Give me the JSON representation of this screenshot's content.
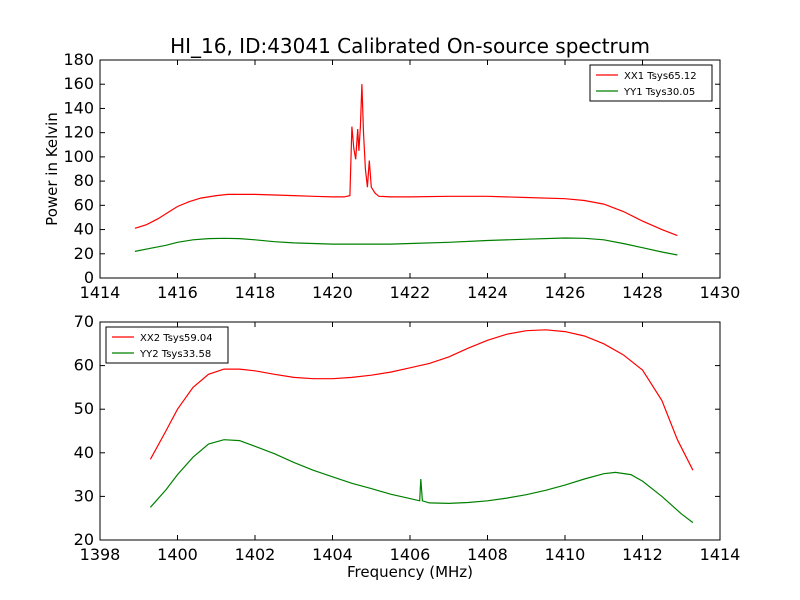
{
  "chart_data": [
    {
      "type": "line",
      "title": "HI_16, ID:43041 Calibrated On-source spectrum",
      "xlabel": "",
      "ylabel": "Power in Kelvin",
      "xlim": [
        1414,
        1430
      ],
      "ylim": [
        0,
        180
      ],
      "xticks": [
        1414,
        1416,
        1418,
        1420,
        1422,
        1424,
        1426,
        1428,
        1430
      ],
      "yticks": [
        0,
        20,
        40,
        60,
        80,
        100,
        120,
        140,
        160,
        180
      ],
      "grid": false,
      "legend_position": "top-right",
      "series": [
        {
          "name": "XX1 Tsys65.12",
          "color": "#ff0000",
          "points": [
            [
              1414.9,
              41
            ],
            [
              1415.2,
              44
            ],
            [
              1415.5,
              49
            ],
            [
              1415.8,
              55
            ],
            [
              1416.0,
              59
            ],
            [
              1416.3,
              63
            ],
            [
              1416.6,
              66
            ],
            [
              1417.0,
              68
            ],
            [
              1417.3,
              69
            ],
            [
              1417.6,
              69
            ],
            [
              1418.0,
              69
            ],
            [
              1418.5,
              68.5
            ],
            [
              1419.0,
              68
            ],
            [
              1419.5,
              67.5
            ],
            [
              1420.0,
              67
            ],
            [
              1420.3,
              67
            ],
            [
              1420.45,
              68
            ],
            [
              1420.5,
              125
            ],
            [
              1420.55,
              107
            ],
            [
              1420.6,
              98
            ],
            [
              1420.65,
              123
            ],
            [
              1420.68,
              105
            ],
            [
              1420.72,
              125
            ],
            [
              1420.76,
              160
            ],
            [
              1420.8,
              120
            ],
            [
              1420.85,
              90
            ],
            [
              1420.9,
              75
            ],
            [
              1420.95,
              97
            ],
            [
              1421.0,
              75
            ],
            [
              1421.1,
              70
            ],
            [
              1421.2,
              67.5
            ],
            [
              1421.5,
              67
            ],
            [
              1422.0,
              67
            ],
            [
              1423.0,
              67.5
            ],
            [
              1424.0,
              67.5
            ],
            [
              1425.0,
              66.5
            ],
            [
              1426.0,
              65.5
            ],
            [
              1426.5,
              64
            ],
            [
              1427.0,
              61
            ],
            [
              1427.5,
              55
            ],
            [
              1428.0,
              47
            ],
            [
              1428.5,
              40
            ],
            [
              1428.9,
              35
            ]
          ]
        },
        {
          "name": "YY1 Tsys30.05",
          "color": "#008000",
          "points": [
            [
              1414.9,
              22
            ],
            [
              1415.3,
              24.5
            ],
            [
              1415.7,
              27
            ],
            [
              1416.0,
              29.5
            ],
            [
              1416.4,
              31.5
            ],
            [
              1416.8,
              32.5
            ],
            [
              1417.2,
              32.8
            ],
            [
              1417.6,
              32.5
            ],
            [
              1418.0,
              31.5
            ],
            [
              1418.5,
              30
            ],
            [
              1419.0,
              29
            ],
            [
              1419.5,
              28.5
            ],
            [
              1420.0,
              28
            ],
            [
              1420.5,
              28
            ],
            [
              1421.0,
              28
            ],
            [
              1421.5,
              28
            ],
            [
              1422.0,
              28.5
            ],
            [
              1423.0,
              29.5
            ],
            [
              1424.0,
              31
            ],
            [
              1425.0,
              32
            ],
            [
              1426.0,
              33
            ],
            [
              1426.5,
              32.8
            ],
            [
              1427.0,
              31.5
            ],
            [
              1427.5,
              28.5
            ],
            [
              1428.0,
              25
            ],
            [
              1428.5,
              21.5
            ],
            [
              1428.9,
              19
            ]
          ]
        }
      ]
    },
    {
      "type": "line",
      "title": "",
      "xlabel": "Frequency (MHz)",
      "ylabel": "",
      "xlim": [
        1398,
        1414
      ],
      "ylim": [
        20,
        70
      ],
      "xticks": [
        1398,
        1400,
        1402,
        1404,
        1406,
        1408,
        1410,
        1412,
        1414
      ],
      "yticks": [
        20,
        30,
        40,
        50,
        60,
        70
      ],
      "grid": false,
      "legend_position": "top-left",
      "series": [
        {
          "name": "XX2 Tsys59.04",
          "color": "#ff0000",
          "points": [
            [
              1399.3,
              38.5
            ],
            [
              1399.7,
              45
            ],
            [
              1400.0,
              50
            ],
            [
              1400.4,
              55
            ],
            [
              1400.8,
              58
            ],
            [
              1401.2,
              59.2
            ],
            [
              1401.6,
              59.2
            ],
            [
              1402.0,
              58.8
            ],
            [
              1402.5,
              58
            ],
            [
              1403.0,
              57.3
            ],
            [
              1403.5,
              57
            ],
            [
              1404.0,
              57
            ],
            [
              1404.5,
              57.3
            ],
            [
              1405.0,
              57.8
            ],
            [
              1405.5,
              58.5
            ],
            [
              1406.0,
              59.5
            ],
            [
              1406.5,
              60.5
            ],
            [
              1407.0,
              62
            ],
            [
              1407.5,
              64
            ],
            [
              1408.0,
              65.8
            ],
            [
              1408.5,
              67.2
            ],
            [
              1409.0,
              68
            ],
            [
              1409.5,
              68.2
            ],
            [
              1410.0,
              67.8
            ],
            [
              1410.5,
              66.8
            ],
            [
              1411.0,
              65
            ],
            [
              1411.5,
              62.5
            ],
            [
              1412.0,
              59
            ],
            [
              1412.5,
              52
            ],
            [
              1412.9,
              43
            ],
            [
              1413.3,
              36
            ]
          ]
        },
        {
          "name": "YY2 Tsys33.58",
          "color": "#008000",
          "points": [
            [
              1399.3,
              27.5
            ],
            [
              1399.7,
              31.5
            ],
            [
              1400.0,
              35
            ],
            [
              1400.4,
              39
            ],
            [
              1400.8,
              42
            ],
            [
              1401.2,
              43
            ],
            [
              1401.6,
              42.8
            ],
            [
              1402.0,
              41.5
            ],
            [
              1402.5,
              39.8
            ],
            [
              1403.0,
              37.8
            ],
            [
              1403.5,
              36
            ],
            [
              1404.0,
              34.5
            ],
            [
              1404.5,
              33
            ],
            [
              1405.0,
              31.8
            ],
            [
              1405.5,
              30.5
            ],
            [
              1406.0,
              29.5
            ],
            [
              1406.25,
              29
            ],
            [
              1406.28,
              34
            ],
            [
              1406.32,
              29
            ],
            [
              1406.5,
              28.5
            ],
            [
              1407.0,
              28.4
            ],
            [
              1407.5,
              28.6
            ],
            [
              1408.0,
              29
            ],
            [
              1408.5,
              29.6
            ],
            [
              1409.0,
              30.4
            ],
            [
              1409.5,
              31.4
            ],
            [
              1410.0,
              32.6
            ],
            [
              1410.5,
              34
            ],
            [
              1411.0,
              35.2
            ],
            [
              1411.3,
              35.5
            ],
            [
              1411.7,
              35
            ],
            [
              1412.0,
              33.5
            ],
            [
              1412.5,
              30
            ],
            [
              1413.0,
              26
            ],
            [
              1413.3,
              24
            ]
          ]
        }
      ]
    }
  ]
}
